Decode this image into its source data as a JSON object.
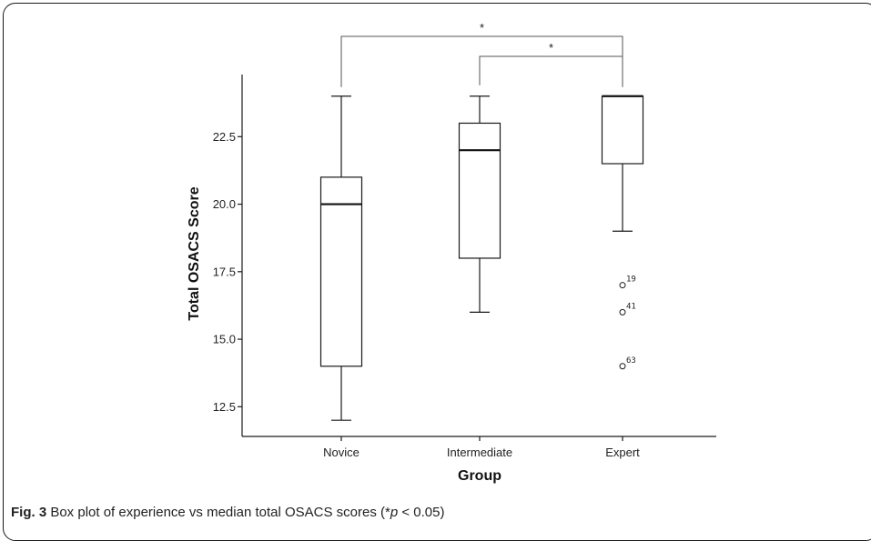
{
  "caption": {
    "label": "Fig. 3",
    "text_before": " Box plot of experience vs median total OSACS scores (*",
    "p_symbol": "p",
    "text_after": " < 0.05)"
  },
  "chart_data": {
    "type": "boxplot",
    "xlabel": "Group",
    "ylabel": "Total OSACS Score",
    "ylim": [
      11.4,
      24.8
    ],
    "yticks": [
      12.5,
      15.0,
      17.5,
      20.0,
      22.5
    ],
    "ytick_labels": [
      "12.5",
      "15.0",
      "17.5",
      "20.0",
      "22.5"
    ],
    "grid": false,
    "categories": [
      "Novice",
      "Intermediate",
      "Expert"
    ],
    "boxes": [
      {
        "category": "Novice",
        "whisker_low": 12,
        "q1": 14,
        "median": 20,
        "q3": 21,
        "whisker_high": 24,
        "outliers": []
      },
      {
        "category": "Intermediate",
        "whisker_low": 16,
        "q1": 18,
        "median": 22,
        "q3": 23,
        "whisker_high": 24,
        "outliers": []
      },
      {
        "category": "Expert",
        "whisker_low": 19,
        "q1": 21.5,
        "median": 24,
        "q3": 24,
        "whisker_high": 24,
        "outliers": [
          {
            "value": 17,
            "label": "19"
          },
          {
            "value": 16,
            "label": "41"
          },
          {
            "value": 14,
            "label": "63"
          }
        ]
      }
    ],
    "significance": [
      {
        "from": "Novice",
        "to": "Expert",
        "symbol": "*"
      },
      {
        "from": "Intermediate",
        "to": "Expert",
        "symbol": "*"
      }
    ]
  }
}
